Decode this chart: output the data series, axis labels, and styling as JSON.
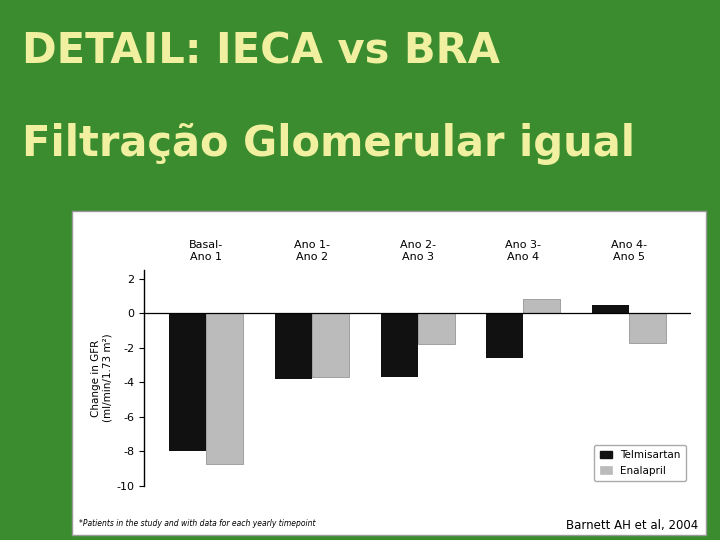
{
  "title_line1": "DETAIL: IECA vs BRA",
  "title_line2": "Filtração Glomerular igual",
  "background_color": "#3a8c2f",
  "title_color": "#f0f0a0",
  "chart_bg": "#ffffff",
  "categories": [
    "Basal-\nAno 1",
    "Ano 1-\nAno 2",
    "Ano 2-\nAno 3",
    "Ano 3-\nAno 4",
    "Ano 4-\nAno 5"
  ],
  "telmisartan": [
    -8.0,
    -3.8,
    -3.7,
    -2.6,
    0.5
  ],
  "enalapril": [
    -8.7,
    -3.7,
    -1.8,
    0.8,
    -1.7
  ],
  "ylabel": "Change in GFR\n(ml/min/1.73 m²)",
  "ylim": [
    -10,
    2.5
  ],
  "yticks": [
    -10,
    -8,
    -6,
    -4,
    -2,
    0,
    2
  ],
  "legend_telmisartan": "Telmisartan",
  "legend_enalapril": "Enalapril",
  "footnote": "*Patients in the study and with data for each yearly timepoint",
  "citation": "Barnett AH et al, 2004",
  "bar_color_telmisartan": "#111111",
  "bar_color_enalapril": "#bbbbbb",
  "bar_width": 0.35
}
